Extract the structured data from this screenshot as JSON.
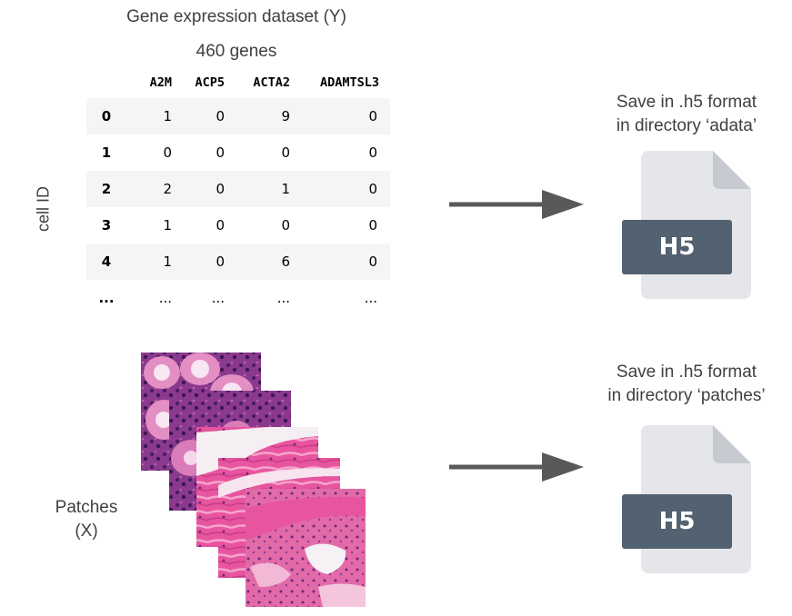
{
  "table": {
    "title": "Gene expression dataset (Y)",
    "subtitle": "460 genes",
    "row_axis_label": "cell ID",
    "columns": [
      "A2M",
      "ACP5",
      "ACTA2",
      "ADAMTSL3"
    ],
    "rows": [
      {
        "index": "0",
        "values": [
          "1",
          "0",
          "9",
          "0"
        ]
      },
      {
        "index": "1",
        "values": [
          "0",
          "0",
          "0",
          "0"
        ]
      },
      {
        "index": "2",
        "values": [
          "2",
          "0",
          "1",
          "0"
        ]
      },
      {
        "index": "3",
        "values": [
          "1",
          "0",
          "0",
          "0"
        ]
      },
      {
        "index": "4",
        "values": [
          "1",
          "0",
          "6",
          "0"
        ]
      },
      {
        "index": "...",
        "values": [
          "...",
          "...",
          "...",
          "..."
        ]
      }
    ]
  },
  "patches": {
    "label_line1": "Patches",
    "label_line2": "(X)"
  },
  "outputs": [
    {
      "line1": "Save in .h5 format",
      "line2": "in directory ‘adata’",
      "file_label": "H5"
    },
    {
      "line1": "Save in .h5 format",
      "line2": "in directory ‘patches’",
      "file_label": "H5"
    }
  ],
  "colors": {
    "arrow": "#595959",
    "file_body": "#e4e6ea",
    "file_fold": "#c6c9cf",
    "file_band": "#536270",
    "tissue_pink": "#e0559a",
    "tissue_purple": "#6b2a7a"
  }
}
